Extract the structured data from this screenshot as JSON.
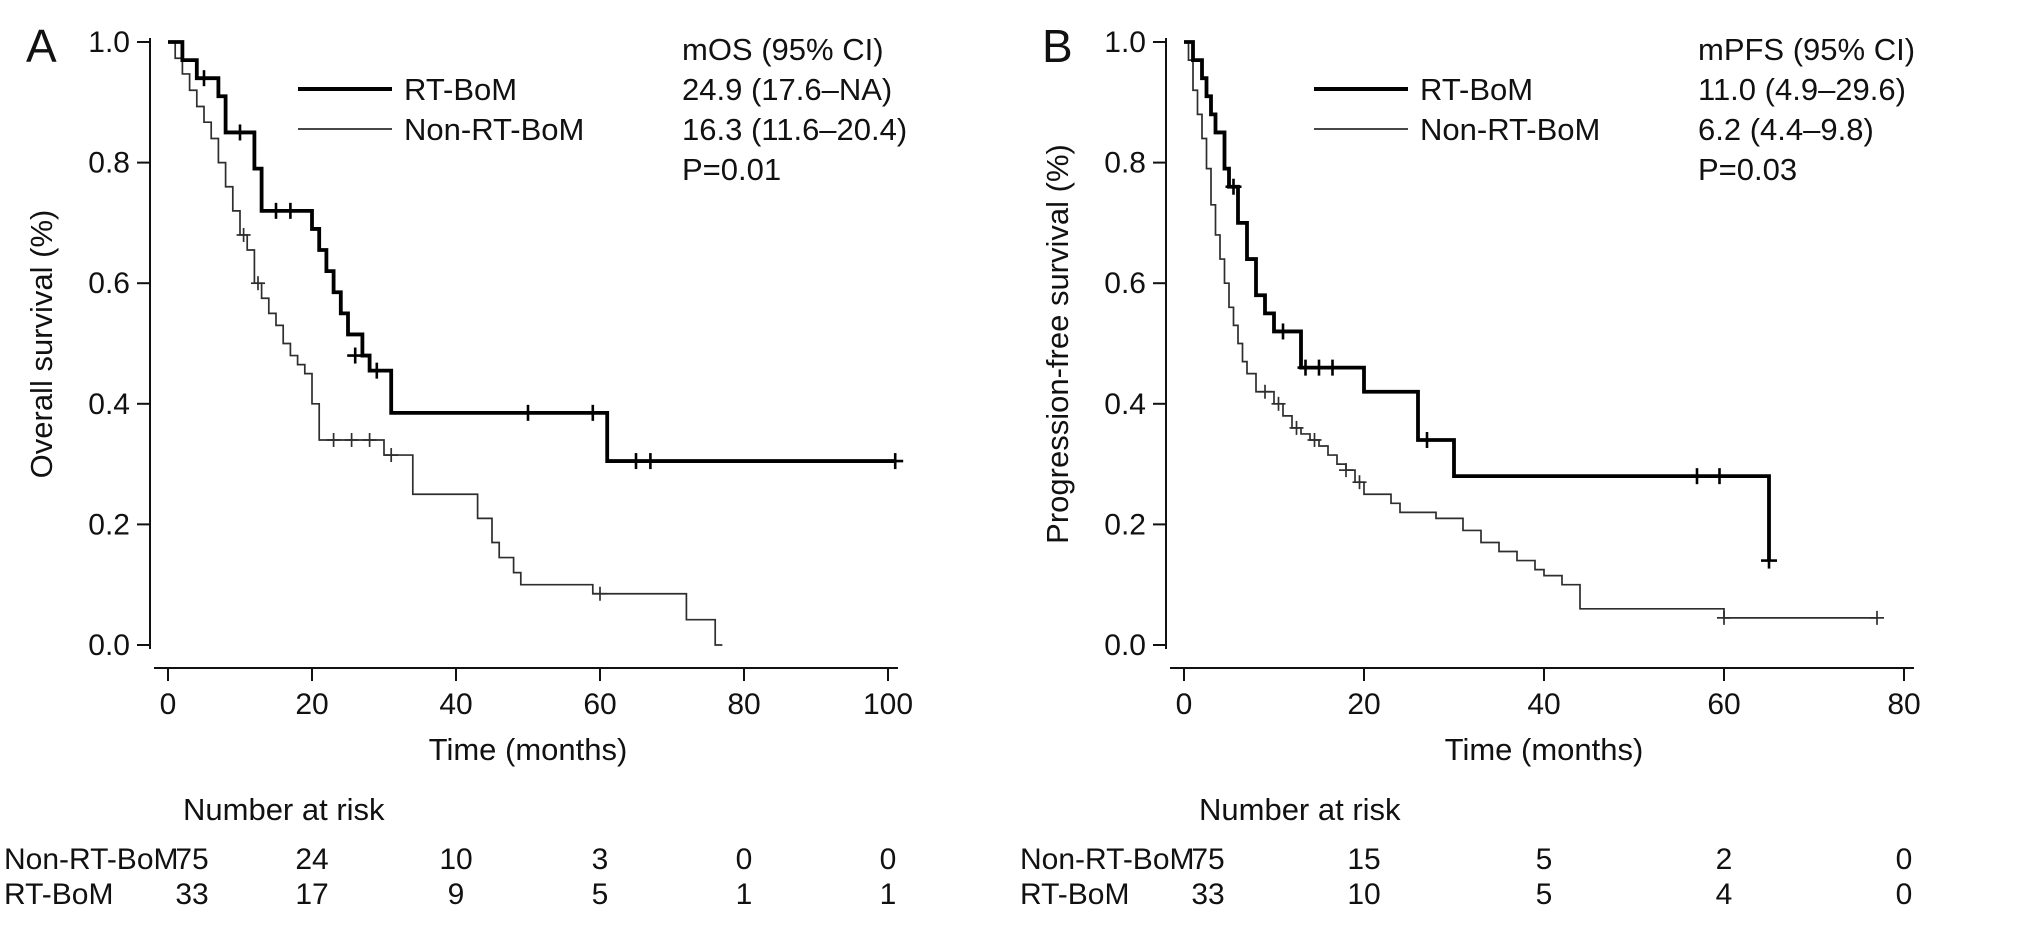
{
  "figure": {
    "panels": [
      {
        "label": "A",
        "risk_title": "Number at risk"
      },
      {
        "label": "B",
        "risk_title": "Number at risk"
      }
    ]
  },
  "chart_data": [
    {
      "type": "line",
      "subtype": "kaplan-meier-step",
      "title": "",
      "xlabel": "Time (months)",
      "ylabel": "Overall survival (%)",
      "xlim": [
        0,
        100
      ],
      "ylim": [
        0,
        1
      ],
      "xticks": [
        0,
        20,
        40,
        60,
        80,
        100
      ],
      "yticks": [
        0,
        0.2,
        0.4,
        0.6,
        0.8,
        1.0
      ],
      "ytick_labels": [
        "0.0",
        "0.2",
        "0.4",
        "0.6",
        "0.8",
        "1.0"
      ],
      "grid": false,
      "legend_position": "top-left-inside",
      "annotations": [
        "mOS (95% CI)",
        "24.9 (17.6–NA)",
        "16.3 (11.6–20.4)",
        "P=0.01"
      ],
      "series": [
        {
          "name": "RT-BoM",
          "line_width": "thick",
          "steps": [
            [
              0,
              1.0
            ],
            [
              2,
              0.97
            ],
            [
              4,
              0.94
            ],
            [
              7,
              0.91
            ],
            [
              8,
              0.85
            ],
            [
              12,
              0.79
            ],
            [
              13,
              0.72
            ],
            [
              20,
              0.69
            ],
            [
              21,
              0.655
            ],
            [
              22,
              0.62
            ],
            [
              23,
              0.585
            ],
            [
              24,
              0.55
            ],
            [
              25,
              0.515
            ],
            [
              27,
              0.48
            ],
            [
              28,
              0.455
            ],
            [
              31,
              0.385
            ],
            [
              61,
              0.305
            ]
          ],
          "end_time": 101,
          "censors": [
            [
              5,
              0.94
            ],
            [
              10,
              0.85
            ],
            [
              15,
              0.72
            ],
            [
              17,
              0.72
            ],
            [
              26,
              0.48
            ],
            [
              29,
              0.455
            ],
            [
              50,
              0.385
            ],
            [
              59,
              0.385
            ],
            [
              65,
              0.305
            ],
            [
              67,
              0.305
            ],
            [
              101,
              0.305
            ]
          ]
        },
        {
          "name": "Non-RT-BoM",
          "line_width": "thin",
          "steps": [
            [
              0,
              1.0
            ],
            [
              1,
              0.973
            ],
            [
              2,
              0.947
            ],
            [
              3,
              0.92
            ],
            [
              4,
              0.893
            ],
            [
              5,
              0.867
            ],
            [
              6,
              0.84
            ],
            [
              7,
              0.8
            ],
            [
              8,
              0.76
            ],
            [
              9,
              0.72
            ],
            [
              10,
              0.68
            ],
            [
              11,
              0.655
            ],
            [
              12,
              0.6
            ],
            [
              13,
              0.575
            ],
            [
              14,
              0.55
            ],
            [
              15,
              0.53
            ],
            [
              16,
              0.5
            ],
            [
              17,
              0.48
            ],
            [
              18,
              0.465
            ],
            [
              19,
              0.45
            ],
            [
              20,
              0.4
            ],
            [
              21,
              0.34
            ],
            [
              30,
              0.315
            ],
            [
              34,
              0.25
            ],
            [
              43,
              0.21
            ],
            [
              45,
              0.17
            ],
            [
              46,
              0.145
            ],
            [
              48,
              0.12
            ],
            [
              49,
              0.1
            ],
            [
              59,
              0.085
            ],
            [
              72,
              0.042
            ],
            [
              76,
              0.0
            ]
          ],
          "end_time": 77,
          "censors": [
            [
              10.5,
              0.68
            ],
            [
              12.5,
              0.6
            ],
            [
              23,
              0.34
            ],
            [
              25.5,
              0.34
            ],
            [
              28,
              0.34
            ],
            [
              31,
              0.315
            ],
            [
              60,
              0.085
            ]
          ]
        }
      ],
      "number_at_risk": {
        "times": [
          0,
          20,
          40,
          60,
          80,
          100
        ],
        "groups": [
          {
            "name": "Non-RT-BoM",
            "counts": [
              75,
              24,
              10,
              3,
              0,
              0
            ]
          },
          {
            "name": "RT-BoM",
            "counts": [
              33,
              17,
              9,
              5,
              1,
              1
            ]
          }
        ]
      }
    },
    {
      "type": "line",
      "subtype": "kaplan-meier-step",
      "title": "",
      "xlabel": "Time (months)",
      "ylabel": "Progression-free survival (%)",
      "xlim": [
        0,
        80
      ],
      "ylim": [
        0,
        1
      ],
      "xticks": [
        0,
        20,
        40,
        60,
        80
      ],
      "yticks": [
        0,
        0.2,
        0.4,
        0.6,
        0.8,
        1.0
      ],
      "ytick_labels": [
        "0.0",
        "0.2",
        "0.4",
        "0.6",
        "0.8",
        "1.0"
      ],
      "grid": false,
      "legend_position": "top-left-inside",
      "annotations": [
        "mPFS (95% CI)",
        "11.0 (4.9–29.6)",
        "6.2 (4.4–9.8)",
        "P=0.03"
      ],
      "series": [
        {
          "name": "RT-BoM",
          "line_width": "thick",
          "steps": [
            [
              0,
              1.0
            ],
            [
              1,
              0.97
            ],
            [
              2,
              0.94
            ],
            [
              2.5,
              0.91
            ],
            [
              3,
              0.88
            ],
            [
              3.5,
              0.85
            ],
            [
              4.5,
              0.79
            ],
            [
              5,
              0.76
            ],
            [
              6,
              0.7
            ],
            [
              7,
              0.64
            ],
            [
              8,
              0.58
            ],
            [
              9,
              0.55
            ],
            [
              10,
              0.52
            ],
            [
              13,
              0.46
            ],
            [
              20,
              0.42
            ],
            [
              26,
              0.34
            ],
            [
              30,
              0.28
            ],
            [
              65,
              0.14
            ]
          ],
          "end_time": 65,
          "censors": [
            [
              5.5,
              0.76
            ],
            [
              11,
              0.52
            ],
            [
              13.5,
              0.46
            ],
            [
              15,
              0.46
            ],
            [
              16.5,
              0.46
            ],
            [
              27,
              0.34
            ],
            [
              57,
              0.28
            ],
            [
              59.5,
              0.28
            ],
            [
              65,
              0.14
            ]
          ]
        },
        {
          "name": "Non-RT-BoM",
          "line_width": "thin",
          "steps": [
            [
              0,
              1.0
            ],
            [
              0.5,
              0.97
            ],
            [
              1,
              0.92
            ],
            [
              1.5,
              0.88
            ],
            [
              2,
              0.84
            ],
            [
              2.5,
              0.79
            ],
            [
              3,
              0.73
            ],
            [
              3.5,
              0.68
            ],
            [
              4,
              0.64
            ],
            [
              4.5,
              0.6
            ],
            [
              5,
              0.56
            ],
            [
              5.5,
              0.53
            ],
            [
              6,
              0.5
            ],
            [
              6.5,
              0.47
            ],
            [
              7,
              0.45
            ],
            [
              8,
              0.42
            ],
            [
              10,
              0.4
            ],
            [
              11,
              0.38
            ],
            [
              12,
              0.36
            ],
            [
              13,
              0.35
            ],
            [
              14,
              0.34
            ],
            [
              15,
              0.33
            ],
            [
              16,
              0.315
            ],
            [
              17,
              0.3
            ],
            [
              18,
              0.29
            ],
            [
              19,
              0.27
            ],
            [
              20,
              0.25
            ],
            [
              23,
              0.235
            ],
            [
              24,
              0.22
            ],
            [
              28,
              0.21
            ],
            [
              31,
              0.19
            ],
            [
              33,
              0.17
            ],
            [
              35,
              0.155
            ],
            [
              37,
              0.14
            ],
            [
              39,
              0.125
            ],
            [
              40,
              0.115
            ],
            [
              42,
              0.1
            ],
            [
              44,
              0.06
            ],
            [
              60,
              0.045
            ]
          ],
          "end_time": 77,
          "censors": [
            [
              9,
              0.42
            ],
            [
              10.5,
              0.4
            ],
            [
              12.5,
              0.36
            ],
            [
              14.5,
              0.34
            ],
            [
              18,
              0.29
            ],
            [
              19.5,
              0.27
            ],
            [
              60,
              0.045
            ],
            [
              77,
              0.045
            ]
          ]
        }
      ],
      "number_at_risk": {
        "times": [
          0,
          20,
          40,
          60,
          80
        ],
        "groups": [
          {
            "name": "Non-RT-BoM",
            "counts": [
              75,
              15,
              5,
              2,
              0
            ]
          },
          {
            "name": "RT-BoM",
            "counts": [
              33,
              10,
              5,
              4,
              0
            ]
          }
        ]
      }
    }
  ]
}
